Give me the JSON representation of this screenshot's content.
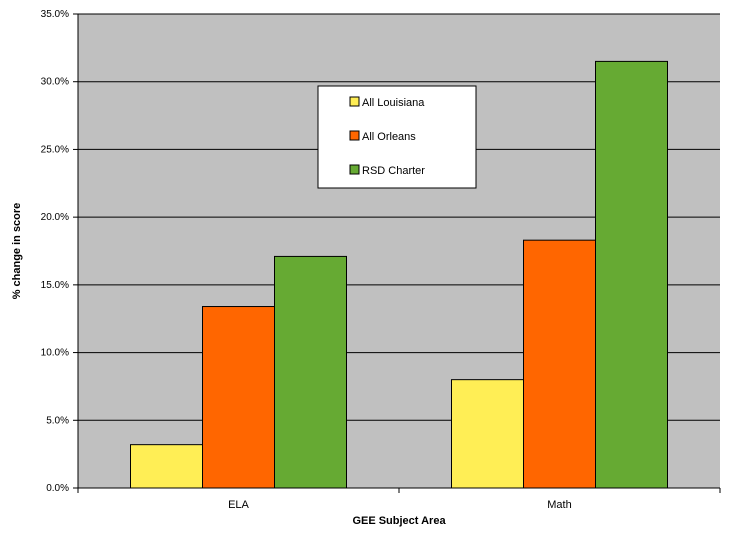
{
  "chart_data": {
    "type": "bar",
    "title": "",
    "xlabel": "GEE Subject Area",
    "ylabel": "% change in score",
    "categories": [
      "ELA",
      "Math"
    ],
    "series": [
      {
        "name": "All Louisiana",
        "color": "#ffee55",
        "values": [
          3.2,
          8.0
        ]
      },
      {
        "name": "All Orleans",
        "color": "#ff6600",
        "values": [
          13.4,
          18.3
        ]
      },
      {
        "name": "RSD Charter",
        "color": "#66aa33",
        "values": [
          17.1,
          31.5
        ]
      }
    ],
    "ylim": [
      0,
      35
    ],
    "y_ticks": [
      "0.0%",
      "5.0%",
      "10.0%",
      "15.0%",
      "20.0%",
      "25.0%",
      "30.0%",
      "35.0%"
    ],
    "grid": true,
    "legend_position": "top-center",
    "plot_background": "#c0c0c0"
  }
}
